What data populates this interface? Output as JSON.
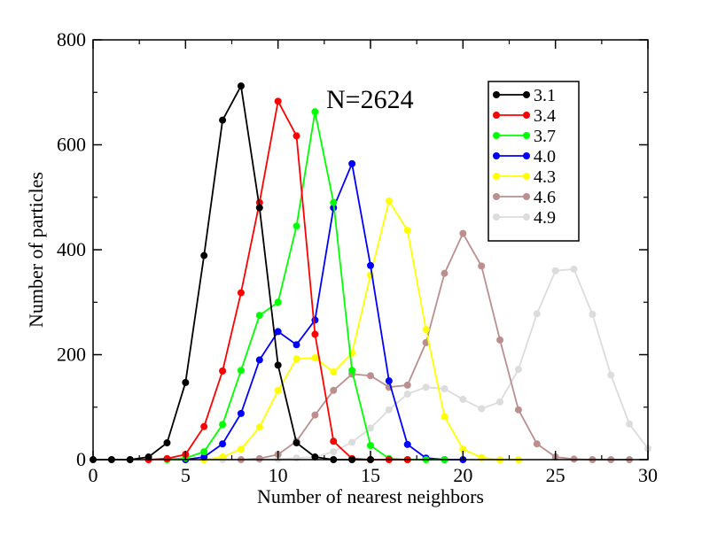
{
  "chart_data": {
    "type": "line",
    "title": "",
    "annotation": "N=2624",
    "xlabel": "Number of nearest neighbors",
    "ylabel": "Number of particles",
    "xlim": [
      0,
      30
    ],
    "ylim": [
      0,
      800
    ],
    "xticks": [
      0,
      5,
      10,
      15,
      20,
      25,
      30
    ],
    "yticks": [
      0,
      200,
      400,
      600,
      800
    ],
    "grid": false,
    "legend_position": "top-right",
    "series": [
      {
        "name": "3.1",
        "color": "#000000",
        "x": [
          0,
          1,
          2,
          3,
          4,
          5,
          6,
          7,
          8,
          9,
          10,
          11,
          12,
          13,
          14,
          15
        ],
        "y": [
          0,
          0,
          0,
          5,
          32,
          147,
          389,
          647,
          712,
          480,
          180,
          32,
          5,
          0,
          0,
          0
        ]
      },
      {
        "name": "3.4",
        "color": "#ff0000",
        "x": [
          3,
          4,
          5,
          6,
          7,
          8,
          9,
          10,
          11,
          12,
          13,
          14,
          15,
          16,
          17
        ],
        "y": [
          0,
          2,
          10,
          63,
          169,
          318,
          490,
          683,
          617,
          239,
          35,
          2,
          0,
          0,
          0
        ]
      },
      {
        "name": "3.7",
        "color": "#00ff00",
        "x": [
          4,
          5,
          6,
          7,
          8,
          9,
          10,
          11,
          12,
          13,
          14,
          15,
          16,
          17,
          18,
          19
        ],
        "y": [
          0,
          3,
          15,
          67,
          170,
          275,
          300,
          445,
          663,
          490,
          170,
          27,
          2,
          0,
          0,
          0
        ]
      },
      {
        "name": "4.0",
        "color": "#0000ff",
        "x": [
          5,
          6,
          7,
          8,
          9,
          10,
          11,
          12,
          13,
          14,
          15,
          16,
          17,
          18,
          19,
          20
        ],
        "y": [
          0,
          5,
          30,
          88,
          190,
          244,
          219,
          266,
          480,
          564,
          370,
          150,
          29,
          3,
          0,
          0
        ]
      },
      {
        "name": "4.3",
        "color": "#ffff00",
        "x": [
          6,
          7,
          8,
          9,
          10,
          11,
          12,
          13,
          14,
          15,
          16,
          17,
          18,
          19,
          20,
          21,
          22,
          23
        ],
        "y": [
          0,
          5,
          20,
          62,
          132,
          192,
          194,
          167,
          203,
          352,
          493,
          437,
          248,
          82,
          20,
          4,
          0,
          0
        ]
      },
      {
        "name": "4.6",
        "color": "#bc8f8f",
        "x": [
          8,
          9,
          10,
          11,
          12,
          13,
          14,
          15,
          16,
          17,
          18,
          19,
          20,
          21,
          22,
          23,
          24,
          25,
          26,
          27,
          28,
          29
        ],
        "y": [
          0,
          2,
          10,
          35,
          85,
          132,
          163,
          160,
          138,
          142,
          223,
          355,
          431,
          369,
          228,
          95,
          30,
          5,
          1,
          0,
          0,
          0
        ]
      },
      {
        "name": "4.9",
        "color": "#dcdcdc",
        "x": [
          1,
          2,
          3,
          4,
          5,
          6,
          7,
          8,
          9,
          10,
          11,
          12,
          13,
          14,
          15,
          16,
          17,
          18,
          19,
          20,
          21,
          22,
          23,
          24,
          25,
          26,
          27,
          28,
          29,
          30
        ],
        "y": [
          0,
          0,
          0,
          0,
          0,
          0,
          0,
          0,
          0,
          1,
          3,
          5,
          15,
          33,
          60,
          95,
          125,
          138,
          135,
          115,
          97,
          110,
          172,
          278,
          360,
          363,
          277,
          161,
          68,
          21
        ]
      }
    ]
  }
}
